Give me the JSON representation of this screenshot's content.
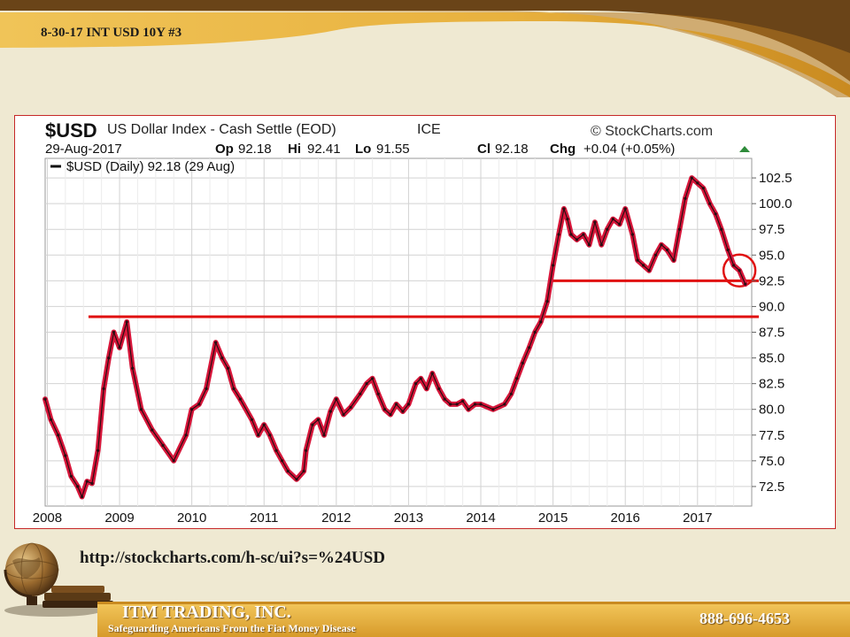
{
  "slide": {
    "title": "8-30-17 INT  USD 10Y #3",
    "url": "http://stockcharts.com/h-sc/ui?s=%24USD",
    "company": "ITM TRADING, INC.",
    "tagline": "Safeguarding Americans From the Fiat Money Disease",
    "phone": "888-696-4653"
  },
  "colors": {
    "band": "#e2a838",
    "band_dark": "#6a4418",
    "annotation_red": "#e01010",
    "price_line": "#d6163a"
  },
  "chart_data": {
    "type": "line",
    "symbol": "$USD",
    "title": "US Dollar Index - Cash Settle (EOD)",
    "exchange": "ICE",
    "source": "© StockCharts.com",
    "date": "29-Aug-2017",
    "ohlc": {
      "op_label": "Op",
      "op": "92.18",
      "hi_label": "Hi",
      "hi": "92.41",
      "lo_label": "Lo",
      "lo": "91.55",
      "cl_label": "Cl",
      "cl": "92.18",
      "chg_label": "Chg",
      "chg": "+0.04 (+0.05%)"
    },
    "legend": "$USD (Daily) 92.18 (29 Aug)",
    "legend_position": "top-left",
    "grid": true,
    "x_ticks": [
      "2008",
      "2009",
      "2010",
      "2011",
      "2012",
      "2013",
      "2014",
      "2015",
      "2016",
      "2017"
    ],
    "y_ticks": [
      "102.5",
      "100.0",
      "97.5",
      "95.0",
      "92.5",
      "90.0",
      "87.5",
      "85.0",
      "82.5",
      "80.0",
      "77.5",
      "75.0",
      "72.5"
    ],
    "xlim": [
      2007.97,
      2017.75
    ],
    "ylim": [
      70.6,
      104.4
    ],
    "series": [
      {
        "x": [
          2007.97,
          2008.05,
          2008.15,
          2008.25,
          2008.33,
          2008.42,
          2008.48,
          2008.55,
          2008.62,
          2008.7,
          2008.78,
          2008.85,
          2008.92,
          2009.0,
          2009.1,
          2009.18,
          2009.3,
          2009.45,
          2009.6,
          2009.75,
          2009.92,
          2010.0,
          2010.1,
          2010.2,
          2010.33,
          2010.42,
          2010.5,
          2010.58,
          2010.67,
          2010.83,
          2010.92,
          2011.0,
          2011.08,
          2011.17,
          2011.25,
          2011.33,
          2011.45,
          2011.55,
          2011.58,
          2011.67,
          2011.75,
          2011.83,
          2011.92,
          2012.0,
          2012.1,
          2012.2,
          2012.33,
          2012.42,
          2012.5,
          2012.58,
          2012.67,
          2012.75,
          2012.83,
          2012.92,
          2013.0,
          2013.1,
          2013.17,
          2013.25,
          2013.33,
          2013.42,
          2013.5,
          2013.58,
          2013.67,
          2013.75,
          2013.83,
          2013.92,
          2014.0,
          2014.17,
          2014.33,
          2014.42,
          2014.5,
          2014.58,
          2014.67,
          2014.75,
          2014.83,
          2014.92,
          2015.0,
          2015.08,
          2015.15,
          2015.2,
          2015.25,
          2015.33,
          2015.42,
          2015.5,
          2015.58,
          2015.67,
          2015.75,
          2015.83,
          2015.92,
          2016.0,
          2016.1,
          2016.17,
          2016.25,
          2016.33,
          2016.42,
          2016.5,
          2016.58,
          2016.67,
          2016.75,
          2016.83,
          2016.92,
          2017.0,
          2017.08,
          2017.17,
          2017.25,
          2017.33,
          2017.42,
          2017.5,
          2017.58,
          2017.66
        ],
        "y": [
          81,
          79,
          77.5,
          75.5,
          73.5,
          72.5,
          71.5,
          73,
          72.8,
          76,
          82,
          85,
          87.5,
          86,
          88.5,
          84,
          80,
          78,
          76.5,
          75,
          77.5,
          80,
          80.5,
          82,
          86.5,
          85,
          84,
          82,
          81,
          79,
          77.5,
          78.5,
          77.5,
          76,
          75,
          74,
          73.2,
          74,
          76,
          78.5,
          79,
          77.5,
          79.8,
          81,
          79.5,
          80.2,
          81.5,
          82.5,
          83,
          81.5,
          80,
          79.5,
          80.5,
          79.8,
          80.5,
          82.5,
          83,
          82,
          83.5,
          82,
          81,
          80.5,
          80.5,
          80.8,
          80,
          80.5,
          80.5,
          80,
          80.5,
          81.5,
          83,
          84.5,
          86,
          87.5,
          88.5,
          90.5,
          94,
          97,
          99.5,
          98.5,
          97,
          96.5,
          97,
          96,
          98.2,
          96,
          97.5,
          98.5,
          98,
          99.5,
          97,
          94.5,
          94,
          93.5,
          95,
          96,
          95.5,
          94.5,
          97.5,
          100.5,
          102.5,
          102,
          101.5,
          100,
          99,
          97.5,
          95.5,
          94,
          93.5,
          92.18
        ]
      }
    ],
    "annotations": [
      {
        "type": "hline",
        "y": 92.5,
        "x_start": 2014.97
      },
      {
        "type": "hline",
        "y": 89.0,
        "x_start": 2008.57
      },
      {
        "type": "circle",
        "x": 2017.58,
        "y": 93.5
      }
    ]
  }
}
